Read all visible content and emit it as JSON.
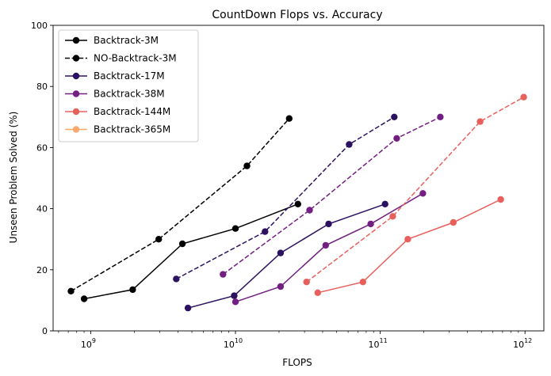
{
  "chart_data": {
    "type": "line",
    "title": "CountDown Flops vs. Accuracy",
    "xlabel": "FLOPS",
    "ylabel": "Unseen Problem Solved (%)",
    "xscale": "log",
    "xlim": [
      550000000.0,
      1350000000000.0
    ],
    "ylim": [
      0,
      100
    ],
    "yticks": [
      "0",
      "20",
      "40",
      "60",
      "80",
      "100"
    ],
    "xticks": [
      {
        "base": "10",
        "exp": "9",
        "value": 1000000000.0
      },
      {
        "base": "10",
        "exp": "10",
        "value": 10000000000.0
      },
      {
        "base": "10",
        "exp": "11",
        "value": 100000000000.0
      },
      {
        "base": "10",
        "exp": "12",
        "value": 1000000000000.0
      }
    ],
    "grid": false,
    "legend_position": "top-left",
    "series": [
      {
        "name": "Backtrack-3M",
        "color": "#000000",
        "style": "solid",
        "x": [
          900000000.0,
          1950000000.0,
          4300000000.0,
          10000000000.0,
          27000000000.0
        ],
        "y": [
          10.5,
          13.5,
          28.5,
          33.5,
          41.5
        ]
      },
      {
        "name": "NO-Backtrack-3M",
        "color": "#000000",
        "style": "dashed",
        "x": [
          730000000.0,
          2950000000.0,
          12000000000.0,
          23500000000.0
        ],
        "y": [
          13,
          30,
          54,
          69.5
        ]
      },
      {
        "name": "Backtrack-17M",
        "color": "#2c1160",
        "style": "solid",
        "x": [
          4700000000.0,
          9800000000.0,
          20500000000.0,
          44000000000.0,
          108000000000.0
        ],
        "y": [
          7.5,
          11.5,
          25.5,
          35,
          41.5
        ]
      },
      {
        "name": "",
        "color": "#2c1160",
        "style": "dashed",
        "x": [
          3900000000.0,
          16000000000.0,
          61000000000.0,
          125000000000.0
        ],
        "y": [
          17,
          32.5,
          61,
          70
        ]
      },
      {
        "name": "Backtrack-38M",
        "color": "#721f81",
        "style": "solid",
        "x": [
          10000000000.0,
          20500000000.0,
          42000000000.0,
          86000000000.0,
          197000000000.0
        ],
        "y": [
          9.5,
          14.5,
          28,
          35,
          45
        ]
      },
      {
        "name": "",
        "color": "#721f81",
        "style": "dashed",
        "x": [
          8200000000.0,
          32500000000.0,
          130000000000.0,
          260000000000.0
        ],
        "y": [
          18.5,
          39.5,
          63,
          70
        ]
      },
      {
        "name": "Backtrack-144M",
        "color": "#e8605c",
        "style": "solid",
        "x": [
          37000000000.0,
          76000000000.0,
          155000000000.0,
          320000000000.0,
          680000000000.0
        ],
        "y": [
          12.5,
          16,
          30,
          35.5,
          43
        ]
      },
      {
        "name": "",
        "color": "#e8605c",
        "style": "dashed",
        "x": [
          31000000000.0,
          122000000000.0,
          490000000000.0,
          980000000000.0
        ],
        "y": [
          16,
          37.5,
          68.5,
          76.5
        ]
      },
      {
        "name": "Backtrack-365M",
        "color": "#fba86d",
        "style": "solid",
        "x": [],
        "y": []
      }
    ]
  }
}
